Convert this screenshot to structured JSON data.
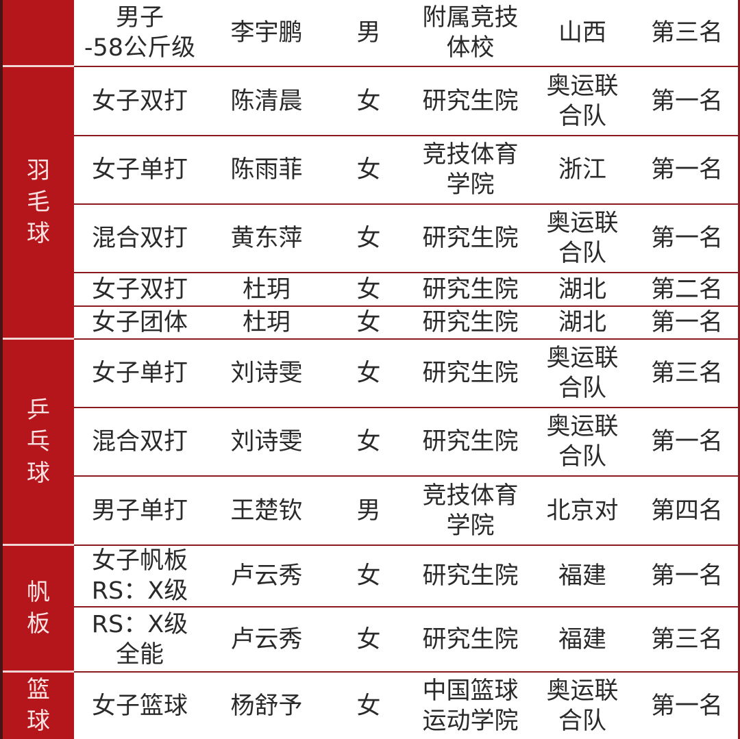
{
  "colors": {
    "sport_column": "#b5161c",
    "border": "#8a1a1f",
    "text": "#2a2a2a"
  },
  "sports": [
    {
      "name": ""
    },
    {
      "name": "羽\n毛\n球"
    },
    {
      "name": "乒\n乓\n球"
    },
    {
      "name": "帆\n板"
    },
    {
      "name": "篮\n球"
    }
  ],
  "rows": [
    {
      "event": "男子\n-58公斤级",
      "athlete": "李宇鹏",
      "gender": "男",
      "school": "附属竞技\n体校",
      "team": "山西",
      "rank": "第三名"
    },
    {
      "event": "女子双打",
      "athlete": "陈清晨",
      "gender": "女",
      "school": "研究生院",
      "team": "奥运联\n合队",
      "rank": "第一名"
    },
    {
      "event": "女子单打",
      "athlete": "陈雨菲",
      "gender": "女",
      "school": "竞技体育\n学院",
      "team": "浙江",
      "rank": "第一名"
    },
    {
      "event": "混合双打",
      "athlete": "黄东萍",
      "gender": "女",
      "school": "研究生院",
      "team": "奥运联\n合队",
      "rank": "第一名"
    },
    {
      "event": "女子双打",
      "athlete": "杜玥",
      "gender": "女",
      "school": "研究生院",
      "team": "湖北",
      "rank": "第二名"
    },
    {
      "event": "女子团体",
      "athlete": "杜玥",
      "gender": "女",
      "school": "研究生院",
      "team": "湖北",
      "rank": "第一名"
    },
    {
      "event": "女子单打",
      "athlete": "刘诗雯",
      "gender": "女",
      "school": "研究生院",
      "team": "奥运联\n合队",
      "rank": "第三名"
    },
    {
      "event": "混合双打",
      "athlete": "刘诗雯",
      "gender": "女",
      "school": "研究生院",
      "team": "奥运联\n合队",
      "rank": "第一名"
    },
    {
      "event": "男子单打",
      "athlete": "王楚钦",
      "gender": "男",
      "school": "竞技体育\n学院",
      "team": "北京对",
      "rank": "第四名"
    },
    {
      "event": "女子帆板\nRS：X级",
      "athlete": "卢云秀",
      "gender": "女",
      "school": "研究生院",
      "team": "福建",
      "rank": "第一名"
    },
    {
      "event": "RS：X级\n全能",
      "athlete": "卢云秀",
      "gender": "女",
      "school": "研究生院",
      "team": "福建",
      "rank": "第三名"
    },
    {
      "event": "女子篮球",
      "athlete": "杨舒予",
      "gender": "女",
      "school": "中国篮球\n运动学院",
      "team": "奥运联\n合队",
      "rank": "第一名"
    }
  ]
}
